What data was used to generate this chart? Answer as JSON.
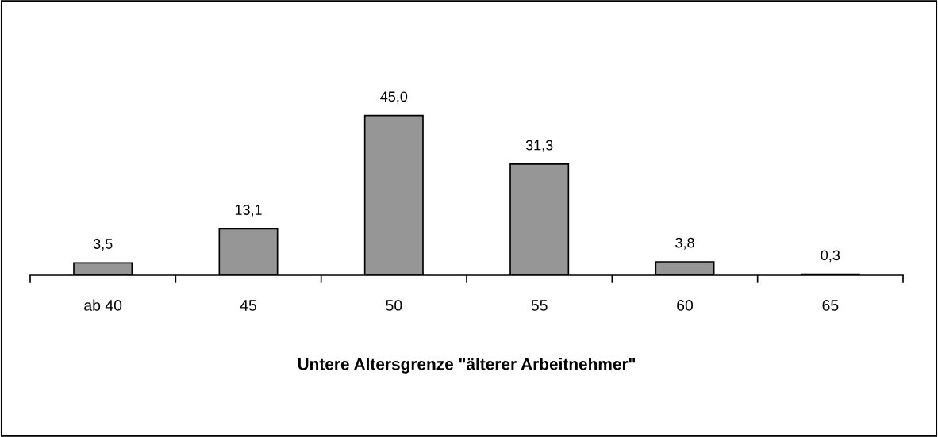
{
  "chart_data": {
    "type": "bar",
    "xlabel": "Untere Altersgrenze \"älterer Arbeitnehmer\"",
    "categories": [
      "ab 40",
      "45",
      "50",
      "55",
      "60",
      "65"
    ],
    "values": [
      3.5,
      13.1,
      45.0,
      31.3,
      3.8,
      0.3
    ],
    "value_labels": [
      "3,5",
      "13,1",
      "45,0",
      "31,3",
      "3,8",
      "0,3"
    ],
    "color": "#969696",
    "grid": false,
    "legend": false
  }
}
